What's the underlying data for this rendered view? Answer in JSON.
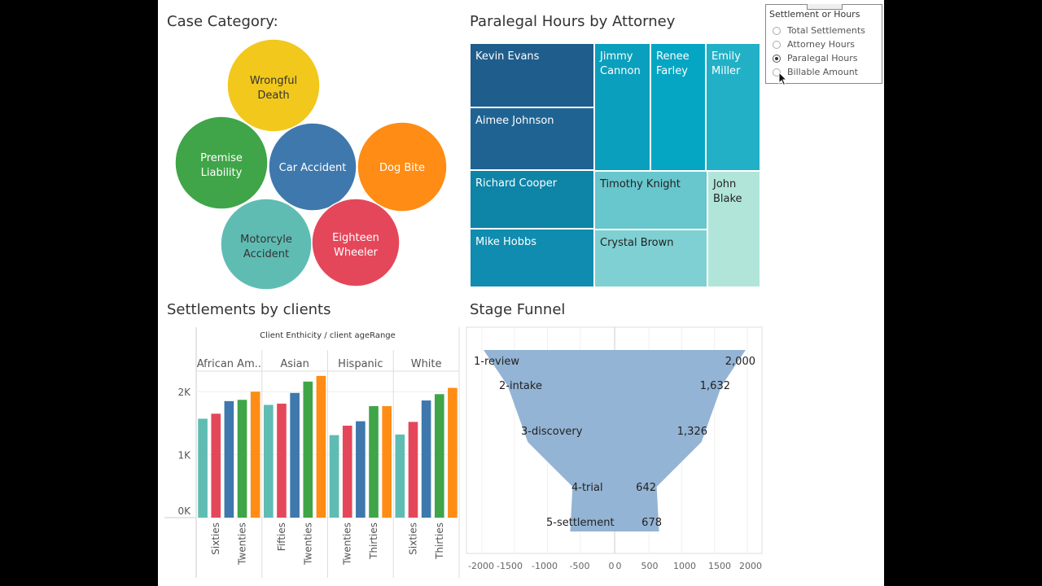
{
  "colors": {
    "green": "#3fa548",
    "blue": "#3e78ad",
    "red": "#e5475a",
    "teal": "#5fbcb3",
    "orange": "#ff8c14",
    "yellow": "#f2c81c",
    "funnel": "#93b4d4"
  },
  "case_category": {
    "title": "Case Category:",
    "bubbles": [
      {
        "label": "Wrongful Death",
        "color": "#f2c81c"
      },
      {
        "label": "Premise Liability",
        "color": "#3fa548"
      },
      {
        "label": "Car Accident",
        "color": "#3e78ad"
      },
      {
        "label": "Dog Bite",
        "color": "#ff8c14"
      },
      {
        "label": "Motorcyle Accident",
        "color": "#5fbcb3"
      },
      {
        "label": "Eighteen Wheeler",
        "color": "#e5475a"
      }
    ]
  },
  "treemap": {
    "title": "Paralegal Hours by Attorney",
    "tiles": [
      {
        "label": "Kevin Evans",
        "color": "#1f5d8c"
      },
      {
        "label": "Aimee Johnson",
        "color": "#1f6392"
      },
      {
        "label": "Richard Cooper",
        "color": "#0e84a7"
      },
      {
        "label": "Mike Hobbs",
        "color": "#0f8caf"
      },
      {
        "label": "Jimmy Cannon",
        "color": "#0a9fbd"
      },
      {
        "label": "Renee Farley",
        "color": "#05a6c3"
      },
      {
        "label": "Emily Miller",
        "color": "#22b0c6"
      },
      {
        "label": "Timothy Knight",
        "color": "#68c6cd"
      },
      {
        "label": "Crystal Brown",
        "color": "#7fd0d2"
      },
      {
        "label": "John Blake",
        "color": "#b2e5d9"
      }
    ]
  },
  "control": {
    "title": "Settlement or Hours",
    "options": [
      "Total Settlements",
      "Attorney Hours",
      "Paralegal Hours",
      "Billable Amount"
    ],
    "selected": "Paralegal Hours"
  },
  "chart_data": [
    {
      "type": "bar",
      "title": "Settlements by clients",
      "header": "Client Enthicity  /  client ageRange",
      "groups": [
        "African Am..",
        "Asian",
        "Hispanic",
        "White"
      ],
      "ytick_labels": [
        "0K",
        "1K",
        "2K"
      ],
      "ylim": [
        0,
        2300
      ],
      "visible_xlabels": [
        [
          "Sixties",
          "Twenties"
        ],
        [
          "Fifties",
          "Twenties"
        ],
        [
          "Twenties",
          "Thirties"
        ],
        [
          "Sixties",
          "Thirties"
        ]
      ],
      "series_colors": [
        "#5fbcb3",
        "#e5475a",
        "#3e78ad",
        "#3fa548",
        "#ff8c14",
        "#5fbcb3"
      ],
      "values": [
        [
          1570,
          1650,
          1850,
          1870,
          2000
        ],
        [
          1790,
          1810,
          1980,
          2160,
          2250
        ],
        [
          1310,
          1460,
          1530,
          1770,
          1770
        ],
        [
          1320,
          1520,
          1860,
          1960,
          2060
        ]
      ]
    },
    {
      "type": "funnel",
      "title": "Stage Funnel",
      "stages": [
        "1-review",
        "2-intake",
        "3-discovery",
        "4-trial",
        "5-settlement"
      ],
      "values": [
        2000,
        1632,
        1326,
        642,
        678
      ],
      "value_labels": [
        "2,000",
        "1,632",
        "1,326",
        "642",
        "678"
      ],
      "xlim": [
        -2000,
        2000
      ],
      "xtick_labels": [
        "-2000",
        "-1500",
        "-1000",
        "-500",
        "0",
        "0",
        "500",
        "1000",
        "1500",
        "2000"
      ]
    }
  ]
}
